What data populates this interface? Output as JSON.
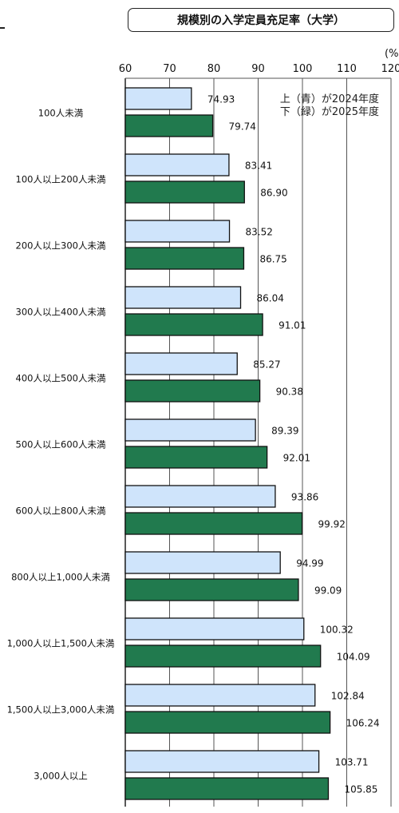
{
  "chart_data": {
    "type": "bar",
    "orientation": "horizontal",
    "title": "規模別の入学定員充足率（大学）",
    "unit_label": "(%",
    "xlim": [
      60,
      120
    ],
    "xticks": [
      60,
      70,
      80,
      90,
      100,
      110,
      120
    ],
    "grid": true,
    "legend": {
      "placement": "top-right",
      "lines": [
        "上（青）が2024年度",
        "下（緑）が2025年度"
      ]
    },
    "categories": [
      "100人未満",
      "100人以上200人未満",
      "200人以上300人未満",
      "300人以上400人未満",
      "400人以上500人未満",
      "500人以上600人未満",
      "600人以上800人未満",
      "800人以上1,000人未満",
      "1,000人以上1,500人未満",
      "1,500人以上3,000人未満",
      "3,000人以上"
    ],
    "series": [
      {
        "color": "#cfe4fb",
        "values": [
          74.93,
          83.41,
          83.52,
          86.04,
          85.27,
          89.39,
          93.86,
          94.99,
          100.32,
          102.84,
          103.71
        ],
        "labels": [
          "74.93",
          "83.41",
          "83.52",
          "86.04",
          "85.27",
          "89.39",
          "93.86",
          "94.99",
          "100.32",
          "102.84",
          "103.71"
        ]
      },
      {
        "color": "#217a4e",
        "values": [
          79.74,
          86.9,
          86.75,
          91.01,
          90.38,
          92.01,
          99.92,
          99.09,
          104.09,
          106.24,
          105.85
        ],
        "labels": [
          "79.74",
          "86.90",
          "86.75",
          "91.01",
          "90.38",
          "92.01",
          "99.92",
          "99.09",
          "104.09",
          "106.24",
          "105.85"
        ]
      }
    ]
  }
}
